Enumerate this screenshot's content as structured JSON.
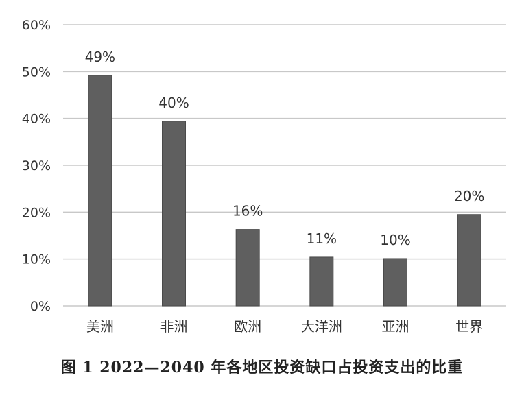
{
  "caption": "图 1 2022—2040 年各地区投资缺口占投资支出的比重",
  "colors": {
    "bar": "#5f5f5f",
    "grid": "#c8c8c8",
    "text": "#333333"
  },
  "chart_data": {
    "type": "bar",
    "categories": [
      "美洲",
      "非洲",
      "欧洲",
      "大洋洲",
      "亚洲",
      "世界"
    ],
    "values": [
      49,
      40,
      16,
      11,
      10,
      20
    ],
    "bar_values_read": [
      49.2,
      39.4,
      16.3,
      10.4,
      10.1,
      19.5
    ],
    "data_labels": [
      "49%",
      "40%",
      "16%",
      "11%",
      "10%",
      "20%"
    ],
    "y_ticks": [
      "0%",
      "10%",
      "20%",
      "30%",
      "40%",
      "50%",
      "60%"
    ],
    "ylim": [
      0,
      60
    ],
    "grid": true,
    "legend": "none",
    "title": "",
    "xlabel": "",
    "ylabel": ""
  }
}
